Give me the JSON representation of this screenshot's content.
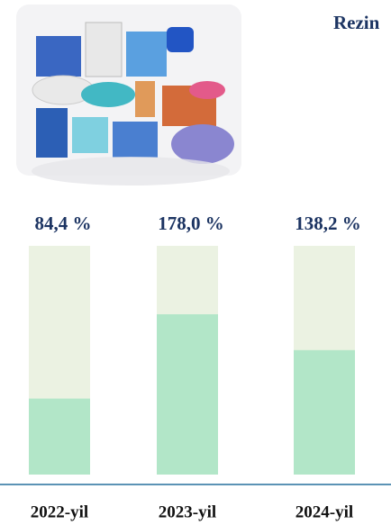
{
  "chart_data": {
    "type": "bar",
    "title": "Rezin",
    "categories": [
      "2022-yil",
      "2023-yil",
      "2024-yil"
    ],
    "values": [
      84.4,
      178.0,
      138.2
    ],
    "value_labels": [
      "84,4 %",
      "178,0 %",
      "138,2 %"
    ],
    "color": "#b2e6c8",
    "track_color": "#ebf2e2",
    "ylim": [
      0,
      254
    ]
  }
}
